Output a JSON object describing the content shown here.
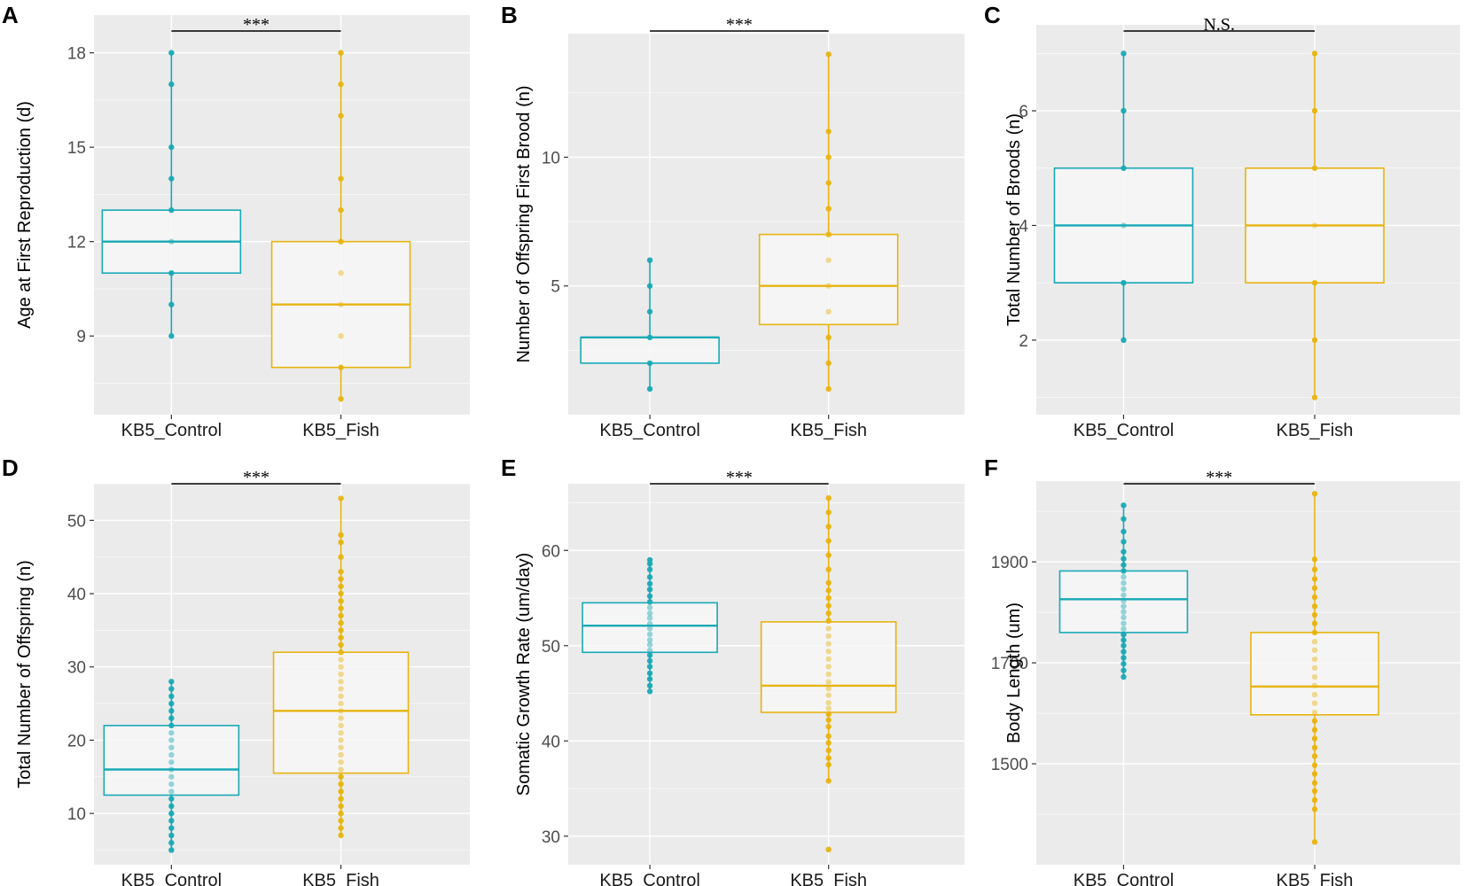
{
  "figure": {
    "colors": {
      "control": "#18a9b6",
      "fish": "#e7b410",
      "panel_bg": "#ebebeb",
      "grid": "#ffffff"
    }
  },
  "chart_data": [
    {
      "type": "box",
      "panel": "A",
      "ylabel": "Age at First Reproduction (d)",
      "categories": [
        "KB5_Control",
        "KB5_Fish"
      ],
      "ylim": [
        6.5,
        19.2
      ],
      "yticks": [
        9,
        12,
        15,
        18
      ],
      "significance": "***",
      "boxes": [
        {
          "name": "KB5_Control",
          "q1": 11,
          "median": 12,
          "q3": 13,
          "whisker_low": 9,
          "whisker_high": 18,
          "points": [
            9,
            10,
            11,
            12,
            13,
            14,
            15,
            17,
            18
          ]
        },
        {
          "name": "KB5_Fish",
          "q1": 8,
          "median": 10,
          "q3": 12,
          "whisker_low": 7,
          "whisker_high": 18,
          "points": [
            7,
            8,
            9,
            10,
            11,
            12,
            13,
            14,
            16,
            17,
            18
          ]
        }
      ]
    },
    {
      "type": "box",
      "panel": "B",
      "ylabel": "Number of Offspring First Brood (n)",
      "categories": [
        "KB5_Control",
        "KB5_Fish"
      ],
      "ylim": [
        0,
        14.8
      ],
      "yticks": [
        5,
        10
      ],
      "significance": "***",
      "boxes": [
        {
          "name": "KB5_Control",
          "q1": 2,
          "median": 3,
          "q3": 3,
          "whisker_low": 1,
          "whisker_high": 6,
          "points": [
            1,
            2,
            3,
            4,
            5,
            6
          ]
        },
        {
          "name": "KB5_Fish",
          "q1": 3.5,
          "median": 5,
          "q3": 7,
          "whisker_low": 1,
          "whisker_high": 14,
          "points": [
            1,
            2,
            3,
            4,
            5,
            6,
            7,
            8,
            9,
            10,
            11,
            14
          ]
        }
      ]
    },
    {
      "type": "box",
      "panel": "C",
      "ylabel": "Total Number of Broods (n)",
      "categories": [
        "KB5_Control",
        "KB5_Fish"
      ],
      "ylim": [
        0.7,
        7.5
      ],
      "yticks": [
        2,
        4,
        6
      ],
      "significance": "N.S.",
      "boxes": [
        {
          "name": "KB5_Control",
          "q1": 3,
          "median": 4,
          "q3": 5,
          "whisker_low": 2,
          "whisker_high": 7,
          "points": [
            2,
            3,
            4,
            5,
            6,
            7
          ]
        },
        {
          "name": "KB5_Fish",
          "q1": 3,
          "median": 4,
          "q3": 5,
          "whisker_low": 1,
          "whisker_high": 7,
          "points": [
            1,
            2,
            3,
            4,
            5,
            6,
            7
          ]
        }
      ]
    },
    {
      "type": "box",
      "panel": "D",
      "ylabel": "Total Number of Offspring (n)",
      "categories": [
        "KB5_Control",
        "KB5_Fish"
      ],
      "ylim": [
        3,
        55
      ],
      "yticks": [
        10,
        20,
        30,
        40,
        50
      ],
      "significance": "***",
      "boxes": [
        {
          "name": "KB5_Control",
          "q1": 12.5,
          "median": 16,
          "q3": 22,
          "whisker_low": 5,
          "whisker_high": 28,
          "points": [
            5,
            6,
            7,
            8,
            9,
            10,
            11,
            12,
            13,
            14,
            15,
            16,
            17,
            18,
            19,
            20,
            21,
            22,
            23,
            24,
            25,
            26,
            27,
            28
          ]
        },
        {
          "name": "KB5_Fish",
          "q1": 15.5,
          "median": 24,
          "q3": 32,
          "whisker_low": 7,
          "whisker_high": 53,
          "points": [
            7,
            8,
            9,
            10,
            11,
            12,
            13,
            14,
            15,
            16,
            17,
            18,
            19,
            20,
            21,
            22,
            23,
            24,
            25,
            26,
            27,
            28,
            29,
            30,
            31,
            32,
            33,
            34,
            35,
            36,
            37,
            38,
            39,
            40,
            41,
            42,
            43,
            45,
            47,
            48,
            53
          ]
        }
      ]
    },
    {
      "type": "box",
      "panel": "E",
      "ylabel": "Somatic Growth Rate (um/day)",
      "categories": [
        "KB5_Control",
        "KB5_Fish"
      ],
      "ylim": [
        27,
        67
      ],
      "yticks": [
        30,
        40,
        50,
        60
      ],
      "significance": "***",
      "boxes": [
        {
          "name": "KB5_Control",
          "q1": 49.3,
          "median": 52.1,
          "q3": 54.5,
          "whisker_low": 45.2,
          "whisker_high": 59,
          "points": [
            45.2,
            45.8,
            46.5,
            47.1,
            47.8,
            48.4,
            49.0,
            49.5,
            50.1,
            50.6,
            51.2,
            51.8,
            52.3,
            52.9,
            53.4,
            54.0,
            54.6,
            55.2,
            55.9,
            56.5,
            57.2,
            58.0,
            58.6,
            59.0
          ]
        },
        {
          "name": "KB5_Fish",
          "q1": 43.0,
          "median": 45.8,
          "q3": 52.5,
          "whisker_low": 35.8,
          "whisker_high": 65.5,
          "points": [
            28.6,
            35.8,
            37.5,
            38.2,
            39.0,
            39.8,
            40.5,
            41.5,
            42.2,
            42.8,
            43.4,
            44.0,
            44.8,
            45.5,
            46.2,
            47.0,
            47.8,
            48.6,
            49.4,
            50.2,
            51.0,
            51.8,
            52.6,
            53.4,
            54.2,
            55.0,
            55.8,
            56.6,
            58.0,
            59.5,
            61.0,
            62.5,
            64.0,
            65.5
          ]
        }
      ]
    },
    {
      "type": "box",
      "panel": "F",
      "ylabel": "Body Length (um)",
      "categories": [
        "KB5_Control",
        "KB5_Fish"
      ],
      "ylim": [
        1300,
        2060
      ],
      "yticks": [
        1500,
        1700,
        1900
      ],
      "significance": "***",
      "boxes": [
        {
          "name": "KB5_Control",
          "q1": 1760,
          "median": 1826,
          "q3": 1882,
          "whisker_low": 1672,
          "whisker_high": 2012,
          "points": [
            1672,
            1685,
            1698,
            1710,
            1722,
            1734,
            1745,
            1756,
            1767,
            1778,
            1790,
            1801,
            1812,
            1823,
            1834,
            1846,
            1858,
            1870,
            1882,
            1894,
            1906,
            1920,
            1940,
            1960,
            1985,
            2012
          ]
        },
        {
          "name": "KB5_Fish",
          "q1": 1597,
          "median": 1653,
          "q3": 1760,
          "whisker_low": 1345,
          "whisker_high": 2035,
          "points": [
            1345,
            1410,
            1428,
            1446,
            1462,
            1480,
            1497,
            1515,
            1532,
            1550,
            1567,
            1585,
            1602,
            1620,
            1637,
            1655,
            1672,
            1690,
            1707,
            1725,
            1742,
            1760,
            1778,
            1795,
            1812,
            1830,
            1848,
            1866,
            1885,
            1905,
            2035
          ]
        }
      ]
    }
  ]
}
